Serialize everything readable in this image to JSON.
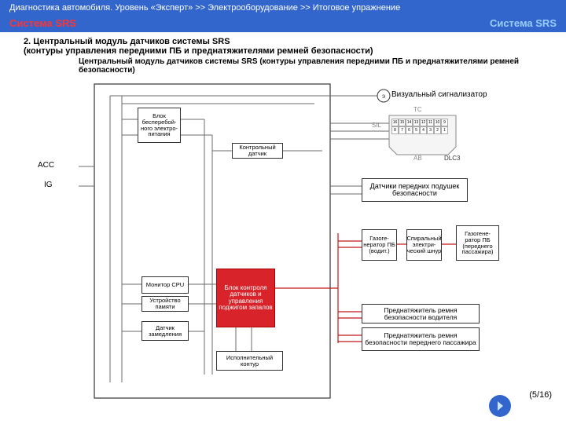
{
  "header": {
    "breadcrumb": "Диагностика автомобиля. Уровень «Эксперт» >> Электрооборудование >> Итоговое упражнение",
    "system_left": "Система SRS",
    "system_right": "Система SRS"
  },
  "subheader": "2. Центральный модуль датчиков системы SRS\n(контуры управления передними ПБ и преднатяжителями ремней безопасности)",
  "caption": "Центральный модуль датчиков системы SRS (контуры управления передними ПБ и преднатяжителями ремней безопасности)",
  "labels": {
    "acc": "ACC",
    "ig": "IG",
    "visual": "Визуальный сигнализатор",
    "sil": "SIL",
    "tc": "TC",
    "ab": "AB",
    "dlc3": "DLC3",
    "front_sensors": "Датчики передних подушек безопасности",
    "pret_driver": "Преднатяжитель ремня безопасности водителя",
    "pret_passenger": "Преднатяжитель ремня безопасности переднего пассажира"
  },
  "blocks": {
    "power": "Блок бесперебой-\nного электро-\nпитания",
    "control_sensor": "Контрольный датчик",
    "monitor": "Монитор CPU",
    "memory": "Устройство памяти",
    "decel": "Датчик замедления",
    "central": "Блок контроля датчиков и управления поджигом запалов",
    "exec": "Исполнительный контур",
    "gas_driver": "Газоге-\nнератор ПБ (водит.)",
    "spiral": "Спиральный электри-\nческий шнур",
    "gas_pass": "Газогене-\nратор ПБ (переднего пассажира)"
  },
  "colors": {
    "header_bg": "#3366cc",
    "red": "#d8232a",
    "line": "#6b6b6b",
    "redline": "#c01818",
    "outline": "#333333"
  },
  "dlc_pins_top": [
    "16",
    "15",
    "14",
    "13",
    "12",
    "11",
    "10",
    "9"
  ],
  "dlc_pins_bot": [
    "8",
    "7",
    "6",
    "5",
    "4",
    "3",
    "2",
    "1"
  ],
  "pager": "(5/16)"
}
